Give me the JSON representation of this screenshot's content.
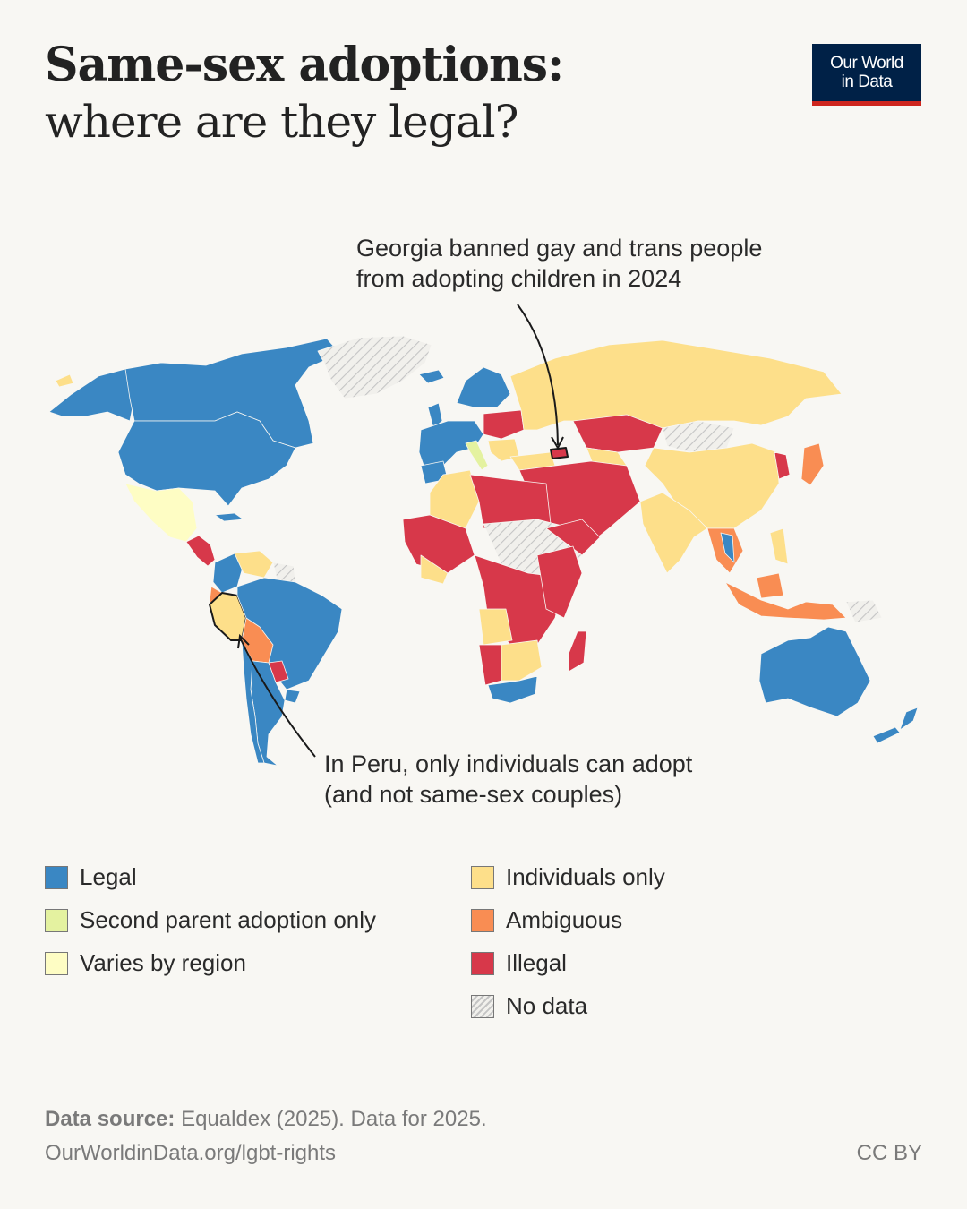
{
  "title": {
    "line1": "Same-sex adoptions:",
    "line2": "where are they legal?"
  },
  "logo": {
    "line1": "Our World",
    "line2": "in Data",
    "bg_color": "#002147",
    "accent_color": "#ce261e"
  },
  "annotations": {
    "georgia": {
      "line1": "Georgia banned gay and trans people",
      "line2": "from adopting children in 2024"
    },
    "peru": {
      "line1": "In Peru, only individuals can adopt",
      "line2": "(and not same-sex couples)"
    }
  },
  "legend": [
    {
      "key": "legal",
      "label": "Legal",
      "color": "#3a87c3"
    },
    {
      "key": "second_parent",
      "label": "Second parent adoption only",
      "color": "#e4f2a0"
    },
    {
      "key": "varies",
      "label": "Varies by region",
      "color": "#fefdc4"
    },
    {
      "key": "individuals",
      "label": "Individuals only",
      "color": "#fddf8a"
    },
    {
      "key": "ambiguous",
      "label": "Ambiguous",
      "color": "#f98d53"
    },
    {
      "key": "illegal",
      "label": "Illegal",
      "color": "#d7384a"
    },
    {
      "key": "no_data",
      "label": "No data",
      "pattern": "hatched"
    }
  ],
  "footer": {
    "source_label": "Data source:",
    "source_text": "Equaldex (2025). Data for 2025.",
    "url": "OurWorldinData.org/lgbt-rights",
    "license": "CC BY"
  },
  "map_regions": [
    {
      "name": "Canada",
      "status": "legal"
    },
    {
      "name": "United States",
      "status": "legal"
    },
    {
      "name": "Greenland",
      "status": "no_data"
    },
    {
      "name": "Mexico",
      "status": "varies"
    },
    {
      "name": "Central America",
      "status": "illegal"
    },
    {
      "name": "Venezuela",
      "status": "individuals"
    },
    {
      "name": "Colombia",
      "status": "legal"
    },
    {
      "name": "Ecuador",
      "status": "ambiguous"
    },
    {
      "name": "Peru",
      "status": "individuals"
    },
    {
      "name": "Brazil",
      "status": "legal"
    },
    {
      "name": "Bolivia",
      "status": "ambiguous"
    },
    {
      "name": "Paraguay",
      "status": "illegal"
    },
    {
      "name": "Argentina",
      "status": "legal"
    },
    {
      "name": "Chile",
      "status": "legal"
    },
    {
      "name": "Uruguay",
      "status": "legal"
    },
    {
      "name": "Western Europe",
      "status": "legal"
    },
    {
      "name": "Italy",
      "status": "second_parent"
    },
    {
      "name": "Eastern Europe",
      "status": "illegal"
    },
    {
      "name": "Russia",
      "status": "individuals"
    },
    {
      "name": "Georgia",
      "status": "illegal"
    },
    {
      "name": "Kazakhstan",
      "status": "illegal"
    },
    {
      "name": "China",
      "status": "individuals"
    },
    {
      "name": "Mongolia",
      "status": "no_data"
    },
    {
      "name": "Japan",
      "status": "ambiguous"
    },
    {
      "name": "Korea",
      "status": "illegal"
    },
    {
      "name": "India",
      "status": "individuals"
    },
    {
      "name": "Middle East",
      "status": "illegal"
    },
    {
      "name": "North Africa",
      "status": "illegal"
    },
    {
      "name": "Algeria",
      "status": "individuals"
    },
    {
      "name": "Libya/Sudan",
      "status": "no_data"
    },
    {
      "name": "Central Africa",
      "status": "illegal"
    },
    {
      "name": "Angola",
      "status": "individuals"
    },
    {
      "name": "Namibia",
      "status": "illegal"
    },
    {
      "name": "South Africa",
      "status": "legal"
    },
    {
      "name": "Madagascar",
      "status": "illegal"
    },
    {
      "name": "Southeast Asia",
      "status": "ambiguous"
    },
    {
      "name": "Indonesia",
      "status": "ambiguous"
    },
    {
      "name": "Papua New Guinea",
      "status": "no_data"
    },
    {
      "name": "Australia",
      "status": "legal"
    },
    {
      "name": "New Zealand",
      "status": "legal"
    }
  ]
}
